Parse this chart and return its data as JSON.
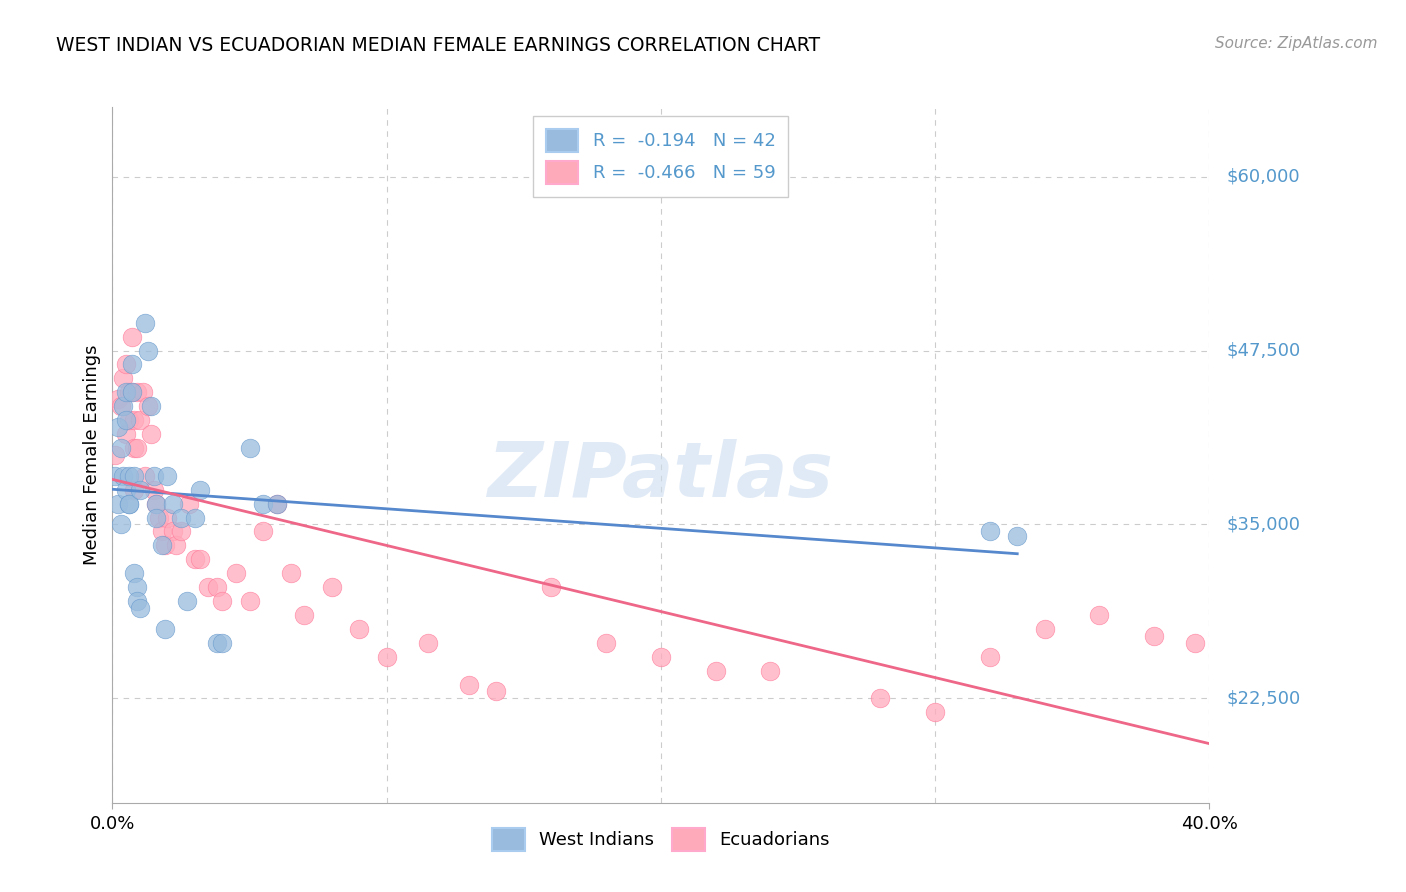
{
  "title": "WEST INDIAN VS ECUADORIAN MEDIAN FEMALE EARNINGS CORRELATION CHART",
  "source": "Source: ZipAtlas.com",
  "ylabel": "Median Female Earnings",
  "xlim": [
    0.0,
    0.4
  ],
  "ylim": [
    15000,
    65000
  ],
  "yticks": [
    22500,
    35000,
    47500,
    60000
  ],
  "ytick_labels": [
    "$22,500",
    "$35,000",
    "$47,500",
    "$60,000"
  ],
  "xtick_labels": [
    "0.0%",
    "40.0%"
  ],
  "xtick_positions": [
    0.0,
    0.4
  ],
  "blue_color": "#99BBDD",
  "blue_edge_color": "#6699CC",
  "pink_color": "#FFAABB",
  "pink_edge_color": "#FF7799",
  "blue_line_color": "#5588CC",
  "pink_line_color": "#EE6688",
  "axis_label_color": "#5599CC",
  "watermark": "ZIPatlas",
  "west_indians_x": [
    0.001,
    0.002,
    0.002,
    0.003,
    0.003,
    0.004,
    0.004,
    0.005,
    0.005,
    0.005,
    0.006,
    0.006,
    0.006,
    0.007,
    0.007,
    0.008,
    0.008,
    0.009,
    0.009,
    0.01,
    0.01,
    0.012,
    0.013,
    0.014,
    0.015,
    0.016,
    0.016,
    0.018,
    0.019,
    0.02,
    0.022,
    0.025,
    0.027,
    0.03,
    0.032,
    0.038,
    0.04,
    0.05,
    0.055,
    0.06,
    0.32,
    0.33
  ],
  "west_indians_y": [
    38500,
    42000,
    36500,
    40500,
    35000,
    43500,
    38500,
    37500,
    44500,
    42500,
    36500,
    38500,
    36500,
    46500,
    44500,
    38500,
    31500,
    30500,
    29500,
    29000,
    37500,
    49500,
    47500,
    43500,
    38500,
    36500,
    35500,
    33500,
    27500,
    38500,
    36500,
    35500,
    29500,
    35500,
    37500,
    26500,
    26500,
    40500,
    36500,
    36500,
    34500,
    34200
  ],
  "ecuadorians_x": [
    0.001,
    0.002,
    0.003,
    0.004,
    0.005,
    0.005,
    0.006,
    0.006,
    0.007,
    0.007,
    0.008,
    0.008,
    0.008,
    0.009,
    0.009,
    0.01,
    0.011,
    0.012,
    0.013,
    0.014,
    0.015,
    0.016,
    0.017,
    0.018,
    0.019,
    0.02,
    0.022,
    0.023,
    0.025,
    0.028,
    0.03,
    0.032,
    0.035,
    0.038,
    0.04,
    0.045,
    0.05,
    0.055,
    0.06,
    0.065,
    0.07,
    0.08,
    0.09,
    0.1,
    0.115,
    0.13,
    0.14,
    0.16,
    0.18,
    0.2,
    0.22,
    0.24,
    0.28,
    0.3,
    0.32,
    0.34,
    0.36,
    0.38,
    0.395
  ],
  "ecuadorians_y": [
    40000,
    44000,
    43500,
    45500,
    46500,
    41500,
    44500,
    42500,
    48500,
    44500,
    42500,
    40500,
    37500,
    44500,
    40500,
    42500,
    44500,
    38500,
    43500,
    41500,
    37500,
    36500,
    35500,
    34500,
    33500,
    35500,
    34500,
    33500,
    34500,
    36500,
    32500,
    32500,
    30500,
    30500,
    29500,
    31500,
    29500,
    34500,
    36500,
    31500,
    28500,
    30500,
    27500,
    25500,
    26500,
    23500,
    23000,
    30500,
    26500,
    25500,
    24500,
    24500,
    22500,
    21500,
    25500,
    27500,
    28500,
    27000,
    26500
  ]
}
